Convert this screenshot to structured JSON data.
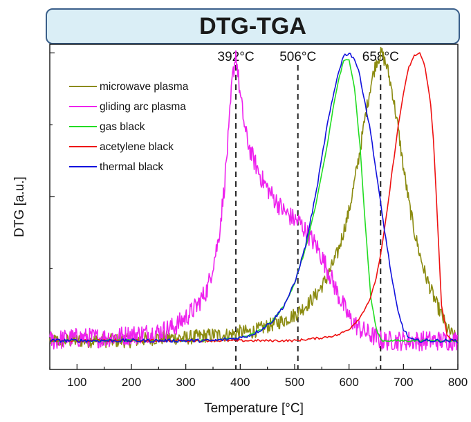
{
  "chart_data": {
    "type": "line",
    "title": "DTG-TGA",
    "xlabel": "Temperature [°C]",
    "ylabel": "DTG [a.u.]",
    "xlim": [
      50,
      800
    ],
    "ylim": [
      -0.1,
      1.03
    ],
    "xticks": [
      100,
      200,
      300,
      400,
      500,
      600,
      700,
      800
    ],
    "grid": false,
    "legend_position": "top-left",
    "reference_lines": [
      {
        "x": 392,
        "label": "392°C"
      },
      {
        "x": 506,
        "label": "506°C"
      },
      {
        "x": 658,
        "label": "658°C"
      }
    ],
    "series": [
      {
        "name": "microwave plasma",
        "color": "#8b8b10",
        "x": [
          50,
          100,
          150,
          200,
          250,
          300,
          350,
          380,
          400,
          420,
          450,
          480,
          500,
          520,
          540,
          560,
          580,
          600,
          610,
          620,
          630,
          640,
          650,
          660,
          670,
          680,
          690,
          700,
          710,
          720,
          730,
          740,
          750,
          760,
          770,
          780,
          800
        ],
        "y": [
          0.0,
          0.0,
          0.0,
          0.0,
          0.01,
          0.01,
          0.02,
          0.02,
          0.03,
          0.03,
          0.05,
          0.07,
          0.09,
          0.12,
          0.16,
          0.22,
          0.31,
          0.45,
          0.55,
          0.66,
          0.78,
          0.89,
          0.97,
          1.0,
          0.95,
          0.86,
          0.74,
          0.6,
          0.48,
          0.38,
          0.3,
          0.23,
          0.18,
          0.13,
          0.09,
          0.04,
          0.0
        ],
        "noise": 0.025
      },
      {
        "name": "gliding arc plasma",
        "color": "#ee22ee",
        "x": [
          50,
          100,
          150,
          200,
          250,
          280,
          300,
          320,
          340,
          360,
          370,
          380,
          385,
          392,
          400,
          410,
          420,
          440,
          460,
          480,
          500,
          510,
          520,
          540,
          560,
          580,
          600,
          620,
          640,
          660,
          700,
          750,
          800
        ],
        "y": [
          0.0,
          0.01,
          0.01,
          0.02,
          0.03,
          0.05,
          0.08,
          0.12,
          0.18,
          0.35,
          0.52,
          0.75,
          0.9,
          1.0,
          0.85,
          0.72,
          0.65,
          0.56,
          0.5,
          0.45,
          0.42,
          0.41,
          0.38,
          0.33,
          0.25,
          0.16,
          0.08,
          0.04,
          0.02,
          0.0,
          0.0,
          0.0,
          0.0
        ],
        "noise": 0.035
      },
      {
        "name": "gas black",
        "color": "#22dd22",
        "x": [
          50,
          300,
          350,
          400,
          420,
          440,
          460,
          480,
          500,
          520,
          540,
          560,
          570,
          580,
          590,
          600,
          610,
          620,
          630,
          640,
          650,
          660,
          700,
          800
        ],
        "y": [
          0.0,
          0.0,
          0.0,
          0.01,
          0.02,
          0.04,
          0.07,
          0.12,
          0.2,
          0.32,
          0.48,
          0.68,
          0.8,
          0.9,
          0.97,
          0.98,
          0.88,
          0.68,
          0.4,
          0.15,
          0.04,
          0.0,
          0.0,
          0.0
        ],
        "noise": 0.004
      },
      {
        "name": "acetylene black",
        "color": "#ee1111",
        "x": [
          50,
          400,
          500,
          550,
          580,
          600,
          620,
          640,
          650,
          660,
          670,
          680,
          690,
          700,
          710,
          720,
          730,
          740,
          750,
          755,
          760,
          765,
          770,
          780,
          790,
          800
        ],
        "y": [
          0.0,
          0.0,
          0.0,
          0.01,
          0.02,
          0.04,
          0.08,
          0.15,
          0.22,
          0.32,
          0.45,
          0.6,
          0.74,
          0.86,
          0.95,
          0.99,
          1.0,
          0.95,
          0.82,
          0.7,
          0.52,
          0.32,
          0.12,
          0.02,
          0.0,
          0.0
        ],
        "noise": 0.004
      },
      {
        "name": "thermal black",
        "color": "#1111dd",
        "x": [
          50,
          300,
          350,
          400,
          420,
          440,
          460,
          480,
          500,
          520,
          540,
          560,
          580,
          590,
          600,
          610,
          620,
          640,
          660,
          680,
          690,
          700,
          710,
          720,
          740,
          800
        ],
        "y": [
          0.0,
          0.0,
          0.0,
          0.01,
          0.02,
          0.04,
          0.07,
          0.12,
          0.2,
          0.33,
          0.52,
          0.75,
          0.93,
          0.99,
          1.0,
          0.98,
          0.92,
          0.72,
          0.45,
          0.2,
          0.1,
          0.04,
          0.01,
          0.0,
          0.0,
          0.0
        ],
        "noise": 0.006
      }
    ]
  }
}
